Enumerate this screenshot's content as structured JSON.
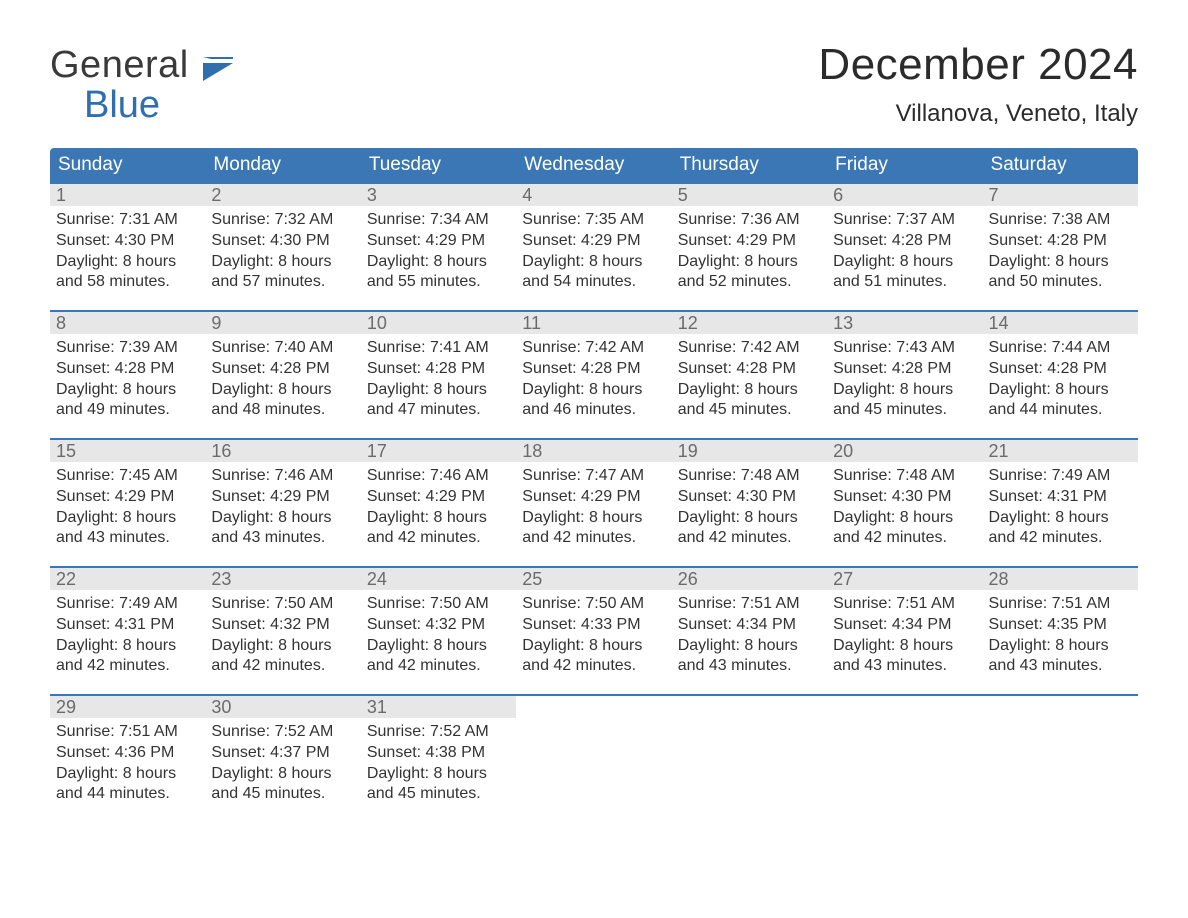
{
  "brand": {
    "line1": "General",
    "line2": "Blue",
    "flag_color": "#2f6fae"
  },
  "title": "December 2024",
  "location": "Villanova, Veneto, Italy",
  "colors": {
    "header_bg": "#3b77b5",
    "header_text": "#ffffff",
    "daynum_bg": "#e7e7e7",
    "daynum_text": "#6b6b6b",
    "body_text": "#333333",
    "rule": "#3b77b5",
    "background": "#ffffff"
  },
  "days_of_week": [
    "Sunday",
    "Monday",
    "Tuesday",
    "Wednesday",
    "Thursday",
    "Friday",
    "Saturday"
  ],
  "weeks": [
    [
      {
        "n": "1",
        "sunrise": "7:31 AM",
        "sunset": "4:30 PM",
        "dl": "8 hours and 58 minutes."
      },
      {
        "n": "2",
        "sunrise": "7:32 AM",
        "sunset": "4:30 PM",
        "dl": "8 hours and 57 minutes."
      },
      {
        "n": "3",
        "sunrise": "7:34 AM",
        "sunset": "4:29 PM",
        "dl": "8 hours and 55 minutes."
      },
      {
        "n": "4",
        "sunrise": "7:35 AM",
        "sunset": "4:29 PM",
        "dl": "8 hours and 54 minutes."
      },
      {
        "n": "5",
        "sunrise": "7:36 AM",
        "sunset": "4:29 PM",
        "dl": "8 hours and 52 minutes."
      },
      {
        "n": "6",
        "sunrise": "7:37 AM",
        "sunset": "4:28 PM",
        "dl": "8 hours and 51 minutes."
      },
      {
        "n": "7",
        "sunrise": "7:38 AM",
        "sunset": "4:28 PM",
        "dl": "8 hours and 50 minutes."
      }
    ],
    [
      {
        "n": "8",
        "sunrise": "7:39 AM",
        "sunset": "4:28 PM",
        "dl": "8 hours and 49 minutes."
      },
      {
        "n": "9",
        "sunrise": "7:40 AM",
        "sunset": "4:28 PM",
        "dl": "8 hours and 48 minutes."
      },
      {
        "n": "10",
        "sunrise": "7:41 AM",
        "sunset": "4:28 PM",
        "dl": "8 hours and 47 minutes."
      },
      {
        "n": "11",
        "sunrise": "7:42 AM",
        "sunset": "4:28 PM",
        "dl": "8 hours and 46 minutes."
      },
      {
        "n": "12",
        "sunrise": "7:42 AM",
        "sunset": "4:28 PM",
        "dl": "8 hours and 45 minutes."
      },
      {
        "n": "13",
        "sunrise": "7:43 AM",
        "sunset": "4:28 PM",
        "dl": "8 hours and 45 minutes."
      },
      {
        "n": "14",
        "sunrise": "7:44 AM",
        "sunset": "4:28 PM",
        "dl": "8 hours and 44 minutes."
      }
    ],
    [
      {
        "n": "15",
        "sunrise": "7:45 AM",
        "sunset": "4:29 PM",
        "dl": "8 hours and 43 minutes."
      },
      {
        "n": "16",
        "sunrise": "7:46 AM",
        "sunset": "4:29 PM",
        "dl": "8 hours and 43 minutes."
      },
      {
        "n": "17",
        "sunrise": "7:46 AM",
        "sunset": "4:29 PM",
        "dl": "8 hours and 42 minutes."
      },
      {
        "n": "18",
        "sunrise": "7:47 AM",
        "sunset": "4:29 PM",
        "dl": "8 hours and 42 minutes."
      },
      {
        "n": "19",
        "sunrise": "7:48 AM",
        "sunset": "4:30 PM",
        "dl": "8 hours and 42 minutes."
      },
      {
        "n": "20",
        "sunrise": "7:48 AM",
        "sunset": "4:30 PM",
        "dl": "8 hours and 42 minutes."
      },
      {
        "n": "21",
        "sunrise": "7:49 AM",
        "sunset": "4:31 PM",
        "dl": "8 hours and 42 minutes."
      }
    ],
    [
      {
        "n": "22",
        "sunrise": "7:49 AM",
        "sunset": "4:31 PM",
        "dl": "8 hours and 42 minutes."
      },
      {
        "n": "23",
        "sunrise": "7:50 AM",
        "sunset": "4:32 PM",
        "dl": "8 hours and 42 minutes."
      },
      {
        "n": "24",
        "sunrise": "7:50 AM",
        "sunset": "4:32 PM",
        "dl": "8 hours and 42 minutes."
      },
      {
        "n": "25",
        "sunrise": "7:50 AM",
        "sunset": "4:33 PM",
        "dl": "8 hours and 42 minutes."
      },
      {
        "n": "26",
        "sunrise": "7:51 AM",
        "sunset": "4:34 PM",
        "dl": "8 hours and 43 minutes."
      },
      {
        "n": "27",
        "sunrise": "7:51 AM",
        "sunset": "4:34 PM",
        "dl": "8 hours and 43 minutes."
      },
      {
        "n": "28",
        "sunrise": "7:51 AM",
        "sunset": "4:35 PM",
        "dl": "8 hours and 43 minutes."
      }
    ],
    [
      {
        "n": "29",
        "sunrise": "7:51 AM",
        "sunset": "4:36 PM",
        "dl": "8 hours and 44 minutes."
      },
      {
        "n": "30",
        "sunrise": "7:52 AM",
        "sunset": "4:37 PM",
        "dl": "8 hours and 45 minutes."
      },
      {
        "n": "31",
        "sunrise": "7:52 AM",
        "sunset": "4:38 PM",
        "dl": "8 hours and 45 minutes."
      },
      null,
      null,
      null,
      null
    ]
  ],
  "labels": {
    "sunrise_prefix": "Sunrise: ",
    "sunset_prefix": "Sunset: ",
    "daylight_prefix": "Daylight: "
  }
}
